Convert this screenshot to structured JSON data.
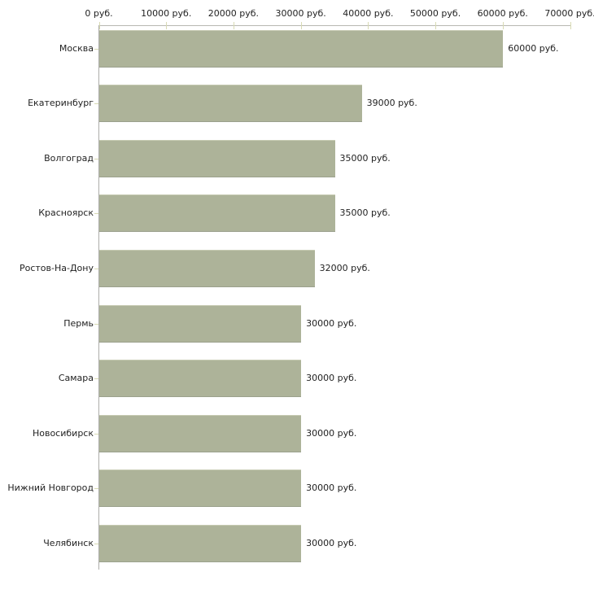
{
  "chart_data": {
    "type": "bar",
    "orientation": "horizontal",
    "title": "",
    "xlabel": "",
    "ylabel": "",
    "unit": "руб.",
    "categories": [
      "Москва",
      "Екатеринбург",
      "Волгоград",
      "Красноярск",
      "Ростов-На-Дону",
      "Пермь",
      "Самара",
      "Новосибирск",
      "Нижний Новгород",
      "Челябинск"
    ],
    "values": [
      60000,
      39000,
      35000,
      35000,
      32000,
      30000,
      30000,
      30000,
      30000,
      30000
    ],
    "value_labels": [
      "60000 руб.",
      "39000 руб.",
      "35000 руб.",
      "35000 руб.",
      "32000 руб.",
      "30000 руб.",
      "30000 руб.",
      "30000 руб.",
      "30000 руб.",
      "30000 руб."
    ],
    "xlim": [
      0,
      70000
    ],
    "x_ticks": [
      0,
      10000,
      20000,
      30000,
      40000,
      50000,
      60000,
      70000
    ],
    "x_tick_labels": [
      "0 руб.",
      "10000 руб.",
      "20000 руб.",
      "30000 руб.",
      "40000 руб.",
      "50000 руб.",
      "60000 руб.",
      "70000 руб."
    ],
    "grid": false,
    "legend": "none",
    "axis_position": "top",
    "colors": {
      "bar": "#adb399",
      "axis_line": "#b8b8b2",
      "tick_mark": "#d8dab4",
      "text": "#222222",
      "background": "#ffffff"
    }
  }
}
